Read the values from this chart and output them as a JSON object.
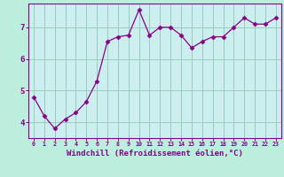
{
  "x": [
    0,
    1,
    2,
    3,
    4,
    5,
    6,
    7,
    8,
    9,
    10,
    11,
    12,
    13,
    14,
    15,
    16,
    17,
    18,
    19,
    20,
    21,
    22,
    23
  ],
  "y": [
    4.8,
    4.2,
    3.8,
    4.1,
    4.3,
    4.65,
    5.3,
    6.55,
    6.7,
    6.75,
    7.55,
    6.75,
    7.0,
    7.0,
    6.75,
    6.35,
    6.55,
    6.7,
    6.7,
    7.0,
    7.3,
    7.1,
    7.1,
    7.3
  ],
  "line_color": "#880088",
  "marker": "D",
  "marker_size": 2.5,
  "background_color": "#bbeedd",
  "plot_bg_color": "#cceeee",
  "grid_color": "#99ccbb",
  "xlabel": "Windchill (Refroidissement éolien,°C)",
  "xlabel_fontsize": 6.5,
  "tick_label_color": "#880088",
  "ylabel_ticks": [
    4,
    5,
    6,
    7
  ],
  "xlim": [
    -0.5,
    23.5
  ],
  "ylim": [
    3.5,
    7.75
  ],
  "xtick_labels": [
    "0",
    "1",
    "2",
    "3",
    "4",
    "5",
    "6",
    "7",
    "8",
    "9",
    "10",
    "11",
    "12",
    "13",
    "14",
    "15",
    "16",
    "17",
    "18",
    "19",
    "20",
    "21",
    "22",
    "23"
  ]
}
